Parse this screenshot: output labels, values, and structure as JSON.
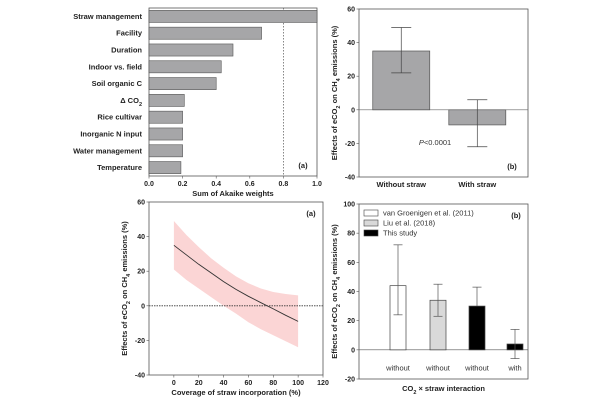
{
  "chart_data": [
    {
      "id": "akaike",
      "type": "bar",
      "orientation": "horizontal",
      "panel_label": "(a)",
      "categories": [
        "Straw management",
        "Facility",
        "Duration",
        "Indoor vs. field",
        "Soil organic C",
        "Δ CO₂",
        "Rice cultivar",
        "Inorganic N input",
        "Water management",
        "Temperature"
      ],
      "values": [
        1.0,
        0.67,
        0.5,
        0.43,
        0.4,
        0.21,
        0.2,
        0.2,
        0.2,
        0.19
      ],
      "xlabel": "Sum of Akaike weights",
      "xlim": [
        0,
        1.0
      ],
      "xticks": [
        "0.0",
        "0.2",
        "0.4",
        "0.6",
        "0.8",
        "1.0"
      ],
      "reference_line": 0.8,
      "bar_color": "#a6a6a8"
    },
    {
      "id": "straw-effect",
      "type": "bar",
      "panel_label": "(b)",
      "categories": [
        "Without straw",
        "With straw"
      ],
      "values": [
        35,
        -9
      ],
      "error_low": [
        22,
        -22
      ],
      "error_high": [
        49,
        6
      ],
      "ylabel": "Effects of eCO₂ on CH₄ emissions (%)",
      "ylim": [
        -40,
        60
      ],
      "yticks": [
        "-40",
        "-20",
        "0",
        "20",
        "40",
        "60"
      ],
      "annotation": "P<0.0001",
      "bar_color": "#a6a6a8"
    },
    {
      "id": "coverage",
      "type": "line",
      "panel_label": "(a)",
      "x": [
        0,
        10,
        20,
        30,
        40,
        50,
        60,
        70,
        80,
        90,
        100
      ],
      "y": [
        35,
        29.5,
        24,
        19,
        14,
        9.5,
        5.5,
        1.8,
        -1.8,
        -5.5,
        -9
      ],
      "ci_upper": [
        49,
        41,
        34,
        27.5,
        22,
        17,
        13,
        10,
        8,
        6.8,
        6
      ],
      "ci_lower": [
        21,
        15,
        10,
        5,
        0,
        -4.5,
        -9.5,
        -13.5,
        -17,
        -20.5,
        -24
      ],
      "xlabel": "Coverage of straw incorporation (%)",
      "ylabel": "Effects of eCO₂ on CH₄ emissions (%)",
      "xlim": [
        -20,
        120
      ],
      "ylim": [
        -40,
        60
      ],
      "xticks": [
        "0",
        "20",
        "40",
        "60",
        "80",
        "100",
        "120"
      ],
      "yticks": [
        "-40",
        "-20",
        "0",
        "20",
        "40",
        "60"
      ],
      "band_color": "#fbd5d5",
      "line_color": "#333333"
    },
    {
      "id": "comparison",
      "type": "bar",
      "panel_label": "(b)",
      "categories": [
        "without",
        "without",
        "without",
        "with"
      ],
      "series_of_bar": [
        "van Groenigen et al. (2011)",
        "Liu et al. (2018)",
        "This study",
        "This study"
      ],
      "values": [
        44,
        34,
        30,
        4
      ],
      "error_low": [
        24,
        23,
        30,
        -6
      ],
      "error_high": [
        72,
        45,
        43,
        14
      ],
      "xlabel": "CO₂ × straw interaction",
      "ylabel": "Effects of eCO₂ on CH₄ emissions (%)",
      "ylim": [
        -20,
        100
      ],
      "yticks": [
        "-20",
        "0",
        "20",
        "40",
        "60",
        "80",
        "100"
      ],
      "legend": [
        {
          "name": "van Groenigen et al. (2011)",
          "color": "#ffffff"
        },
        {
          "name": "Liu et al. (2018)",
          "color": "#d9d9d9"
        },
        {
          "name": "This study",
          "color": "#000000"
        }
      ],
      "legend_position": "top-left"
    }
  ]
}
